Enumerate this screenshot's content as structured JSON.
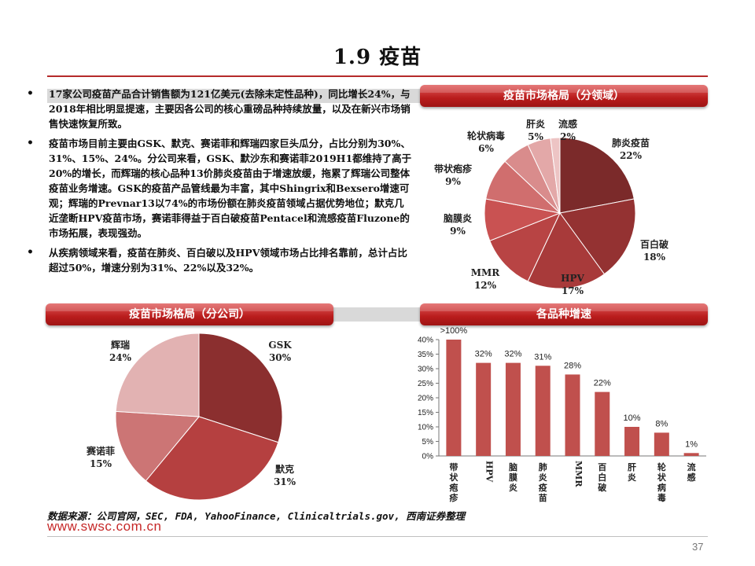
{
  "page": {
    "title": "1.9 疫苗",
    "page_number": "37",
    "source": "数据来源：公司官网，SEC, FDA, YahooFinance, Clinicaltrials.gov, 西南证券整理",
    "url": "www.swsc.com.cn"
  },
  "bullets": [
    "17家公司疫苗产品合计销售额为121亿美元(去除未定性品种)，同比增长24%，与2018年相比明显提速，主要因各公司的核心重磅品种持续放量，以及在新兴市场销售快速恢复所致。",
    "疫苗市场目前主要由GSK、默克、赛诺菲和辉瑞四家巨头瓜分，占比分别为30%、31%、15%、24%。分公司来看，GSK、默沙东和赛诺菲2019H1都维持了高于20%的增长，而辉瑞的核心品种13价肺炎疫苗由于增速放缓，拖累了辉瑞公司整体疫苗业务增速。GSK的疫苗产品管线最为丰富，其中Shingrix和Bexsero增速可观；辉瑞的Prevnar13以74%的市场份额在肺炎疫苗领域占据优势地位；默克几近垄断HPV疫苗市场，赛诺菲得益于百白破疫苗Pentacel和流感疫苗Fluzone的市场拓展，表现强劲。",
    "从疾病领域来看，疫苗在肺炎、百白破以及HPV领域市场占比排名靠前，总计占比超过50%，增速分别为31%、22%以及32%。"
  ],
  "banners": {
    "domain": "疫苗市场格局（分领域）",
    "company": "疫苗市场格局（分公司）",
    "growth": "各品种增速"
  },
  "chart_data": [
    {
      "type": "pie",
      "title": "疫苗市场格局（分领域）",
      "slices": [
        {
          "label": "肺炎疫苗",
          "pct_label": "22%",
          "value": 22,
          "color": "#7b2a2a"
        },
        {
          "label": "百白破",
          "pct_label": "18%",
          "value": 18,
          "color": "#943232"
        },
        {
          "label": "HPV",
          "pct_label": "17%",
          "value": 17,
          "color": "#a83a3a"
        },
        {
          "label": "MMR",
          "pct_label": "12%",
          "value": 12,
          "color": "#b84444"
        },
        {
          "label": "脑膜炎",
          "pct_label": "9%",
          "value": 9,
          "color": "#c95252"
        },
        {
          "label": "带状疱疹",
          "pct_label": "9%",
          "value": 9,
          "color": "#d06e6e"
        },
        {
          "label": "轮状病毒",
          "pct_label": "6%",
          "value": 6,
          "color": "#d98c8c"
        },
        {
          "label": "肝炎",
          "pct_label": "5%",
          "value": 5,
          "color": "#e3a8a8"
        },
        {
          "label": "流感",
          "pct_label": "2%",
          "value": 2,
          "color": "#edc4c4"
        }
      ]
    },
    {
      "type": "pie",
      "title": "疫苗市场格局（分公司）",
      "slices": [
        {
          "label": "GSK",
          "pct_label": "30%",
          "value": 30,
          "color": "#8b2f2f"
        },
        {
          "label": "默克",
          "pct_label": "31%",
          "value": 31,
          "color": "#b54040"
        },
        {
          "label": "赛诺菲",
          "pct_label": "15%",
          "value": 15,
          "color": "#cc7575"
        },
        {
          "label": "辉瑞",
          "pct_label": "24%",
          "value": 24,
          "color": "#e2b2b2"
        }
      ]
    },
    {
      "type": "bar",
      "title": "各品种增速",
      "categories": [
        "带状疱疹",
        "HPV",
        "脑膜炎",
        "肺炎疫苗",
        "MMR",
        "百白破",
        "肝炎",
        "轮状病毒",
        "流感"
      ],
      "values": [
        40,
        32,
        32,
        31,
        28,
        22,
        10,
        8,
        1
      ],
      "value_labels": [
        ">100%",
        "32%",
        "32%",
        "31%",
        "28%",
        "22%",
        "10%",
        "8%",
        "1%"
      ],
      "y_ticks": [
        "0%",
        "5%",
        "10%",
        "15%",
        "20%",
        "25%",
        "30%",
        "35%",
        "40%"
      ],
      "ylim": [
        0,
        40
      ],
      "bar_color": "#c0504d",
      "grid": false
    }
  ]
}
